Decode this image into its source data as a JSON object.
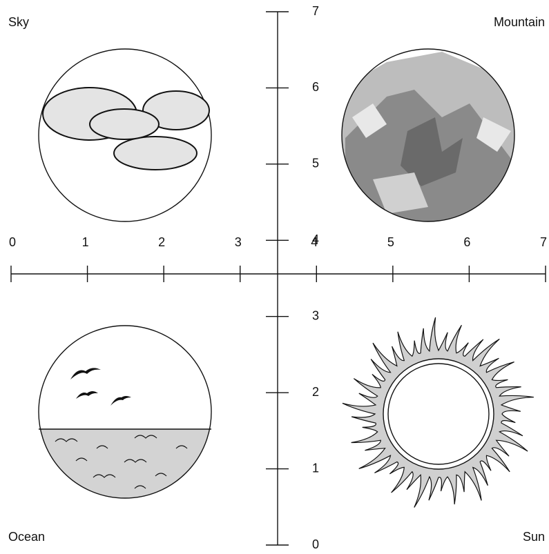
{
  "corners": {
    "top_left": "Sky",
    "top_right": "Mountain",
    "bottom_left": "Ocean",
    "bottom_right": "Sun"
  },
  "x_axis": {
    "labels": [
      0,
      1,
      2,
      3,
      4,
      5,
      6,
      7
    ]
  },
  "y_axis": {
    "labels": [
      0,
      1,
      2,
      3,
      4,
      5,
      6,
      7
    ]
  }
}
